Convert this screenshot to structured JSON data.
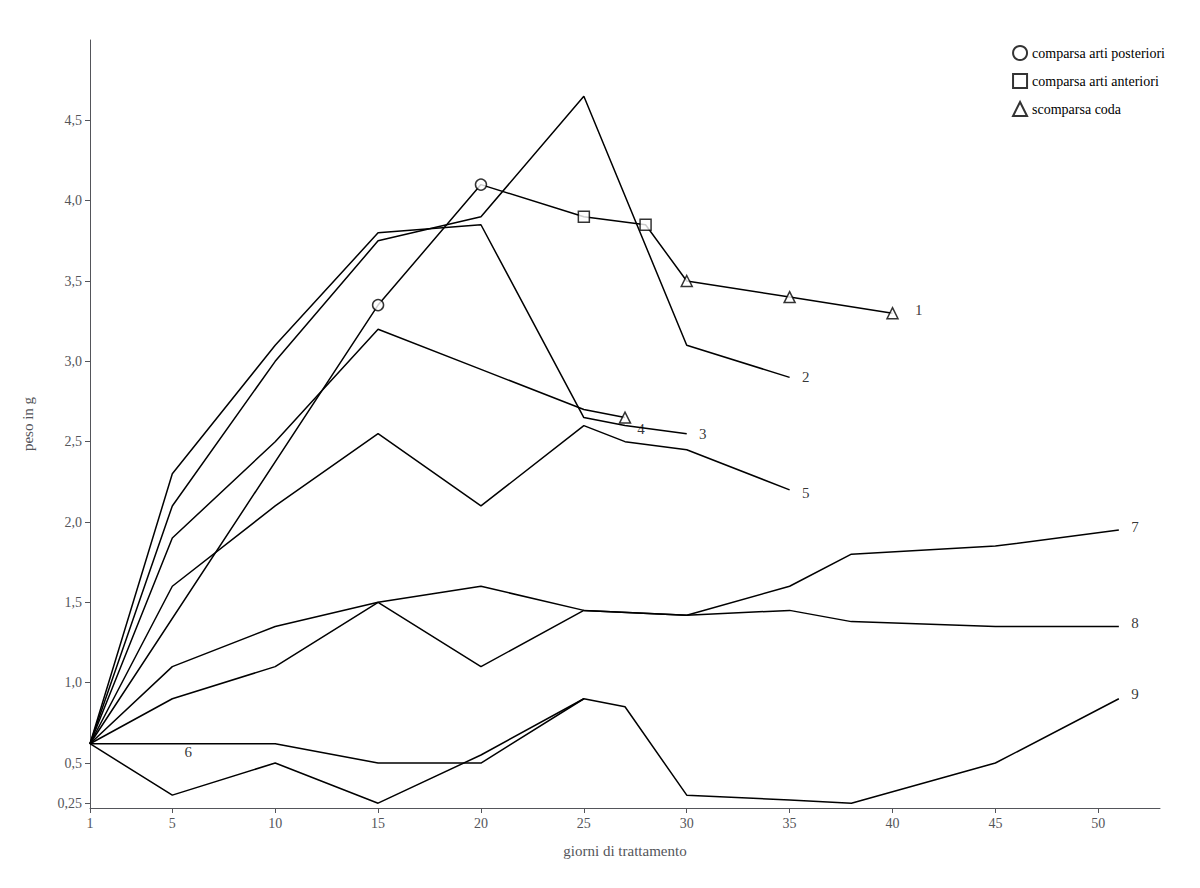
{
  "chart_data": {
    "type": "line",
    "xlabel": "giorni di trattamento",
    "ylabel": "peso in g",
    "xlim": [
      1,
      53
    ],
    "ylim": [
      0.22,
      5.0
    ],
    "xticks": [
      1,
      5,
      10,
      15,
      20,
      25,
      30,
      35,
      40,
      45,
      50
    ],
    "yticks": [
      {
        "value": 0.25,
        "label": "0,25"
      },
      {
        "value": 0.5,
        "label": "0,5"
      },
      {
        "value": 1.0,
        "label": "1,0"
      },
      {
        "value": 1.5,
        "label": "1,5"
      },
      {
        "value": 2.0,
        "label": "2,0"
      },
      {
        "value": 2.5,
        "label": "2,5"
      },
      {
        "value": 3.0,
        "label": "3,0"
      },
      {
        "value": 3.5,
        "label": "3,5"
      },
      {
        "value": 4.0,
        "label": "4,0"
      },
      {
        "value": 4.5,
        "label": "4,5"
      }
    ],
    "grid": false,
    "legend": "upper right",
    "series": [
      {
        "type": "line",
        "color": "black",
        "x": [
          1,
          5,
          10,
          15,
          20,
          25,
          30,
          35
        ],
        "values": [
          0.62,
          2.1,
          3.0,
          3.75,
          3.9,
          4.65,
          3.1,
          2.9
        ]
      },
      {
        "type": "line",
        "color": "black",
        "x": [
          1,
          5,
          10,
          15,
          20,
          25,
          27,
          30
        ],
        "values": [
          0.62,
          2.3,
          3.1,
          3.8,
          3.85,
          2.65,
          2.6,
          2.55
        ]
      },
      {
        "type": "line",
        "color": "black",
        "x": [
          1,
          5,
          10,
          15,
          20,
          25,
          27
        ],
        "values": [
          0.62,
          1.9,
          2.5,
          3.2,
          2.95,
          2.7,
          2.65
        ]
      },
      {
        "type": "line",
        "color": "black",
        "x": [
          1,
          5,
          10,
          15,
          20,
          25,
          27,
          30,
          35
        ],
        "values": [
          0.62,
          1.6,
          2.1,
          2.55,
          2.1,
          2.6,
          2.5,
          2.45,
          2.2
        ]
      },
      {
        "type": "line",
        "color": "black",
        "x": [
          1,
          5,
          10,
          15,
          20,
          25
        ],
        "values": [
          0.62,
          0.3,
          0.5,
          0.25,
          0.55,
          0.9
        ]
      },
      {
        "type": "line",
        "color": "black",
        "x": [
          1,
          5,
          10,
          15,
          20,
          25,
          30,
          35,
          38,
          45,
          51
        ],
        "values": [
          0.62,
          1.1,
          1.35,
          1.5,
          1.6,
          1.45,
          1.42,
          1.6,
          1.8,
          1.85,
          1.95
        ]
      },
      {
        "type": "line",
        "color": "black",
        "x": [
          1,
          5,
          10,
          15,
          20,
          25,
          30,
          35,
          38,
          45,
          51
        ],
        "values": [
          0.62,
          0.9,
          1.1,
          1.5,
          1.1,
          1.45,
          1.42,
          1.45,
          1.38,
          1.35,
          1.35
        ]
      },
      {
        "type": "line",
        "color": "black",
        "x": [
          1,
          5,
          10,
          15,
          20,
          25,
          27,
          30,
          35,
          38,
          45,
          51
        ],
        "values": [
          0.62,
          0.62,
          0.62,
          0.5,
          0.5,
          0.9,
          0.85,
          0.3,
          0.27,
          0.25,
          0.5,
          0.9
        ]
      },
      {
        "type": "line",
        "color": "black",
        "x": [
          1,
          15,
          20,
          25,
          28,
          30,
          35,
          40
        ],
        "values": [
          0.62,
          3.35,
          4.1,
          3.9,
          3.85,
          3.5,
          3.4,
          3.3
        ]
      },
      {
        "type": "scatter",
        "name": "comparsa arti posteriori",
        "marker": "circle",
        "color": "black",
        "x": [
          15,
          20
        ],
        "values": [
          3.35,
          4.1
        ]
      },
      {
        "type": "scatter",
        "name": "comparsa arti anteriori",
        "marker": "square",
        "color": "black",
        "x": [
          25,
          28
        ],
        "values": [
          3.9,
          3.85
        ]
      },
      {
        "type": "scatter",
        "name": "scomparsa coda",
        "marker": "triangle",
        "color": "black",
        "x": [
          30,
          35,
          40,
          27
        ],
        "values": [
          3.5,
          3.4,
          3.3,
          2.65
        ]
      }
    ],
    "annotations": [
      {
        "text": "1",
        "x": 41,
        "y": 3.32
      },
      {
        "text": "2",
        "x": 35.5,
        "y": 2.9
      },
      {
        "text": "3",
        "x": 30.5,
        "y": 2.55
      },
      {
        "text": "4",
        "x": 27.5,
        "y": 2.58
      },
      {
        "text": "5",
        "x": 35.5,
        "y": 2.18
      },
      {
        "text": "6",
        "x": 5.5,
        "y": 0.57
      },
      {
        "text": "7",
        "x": 51.5,
        "y": 1.97
      },
      {
        "text": "8",
        "x": 51.5,
        "y": 1.37
      },
      {
        "text": "9",
        "x": 51.5,
        "y": 0.93
      }
    ]
  }
}
